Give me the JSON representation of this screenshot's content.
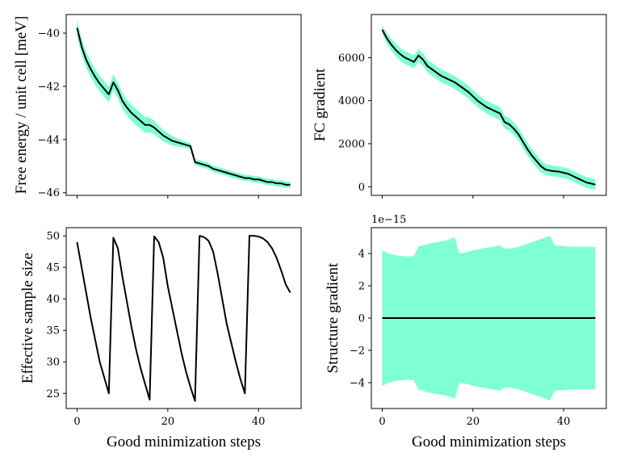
{
  "colors": {
    "line": "#000000",
    "band": "#7fffd4",
    "frame": "#000000"
  },
  "chart_data": [
    {
      "id": "free-energy",
      "type": "line",
      "ylabel": "Free energy / unit cell [meV]",
      "xlabel": "",
      "xlim": [
        -2.4,
        49.4
      ],
      "ylim": [
        -46.1,
        -39.3
      ],
      "xticks": [
        0,
        20,
        40
      ],
      "show_xtick_labels": false,
      "yticks": [
        -40,
        -42,
        -44,
        -46
      ],
      "yticklabels": [
        "−40",
        "−42",
        "−44",
        "−46"
      ],
      "series": [
        {
          "x": [
            0,
            1,
            2,
            3,
            4,
            5,
            6,
            7,
            8,
            9,
            10,
            11,
            12,
            13,
            14,
            15,
            16,
            17,
            18,
            19,
            20,
            21,
            22,
            23,
            24,
            25,
            26,
            27,
            28,
            29,
            30,
            31,
            32,
            33,
            34,
            35,
            36,
            37,
            38,
            39,
            40,
            41,
            42,
            43,
            44,
            45,
            46,
            47
          ],
          "values": [
            -39.8,
            -40.5,
            -41.0,
            -41.35,
            -41.65,
            -41.9,
            -42.1,
            -42.3,
            -41.85,
            -42.15,
            -42.55,
            -42.8,
            -43.0,
            -43.15,
            -43.3,
            -43.45,
            -43.45,
            -43.55,
            -43.7,
            -43.85,
            -43.95,
            -44.05,
            -44.1,
            -44.15,
            -44.2,
            -44.25,
            -44.85,
            -44.9,
            -44.95,
            -45.0,
            -45.1,
            -45.15,
            -45.2,
            -45.25,
            -45.3,
            -45.35,
            -45.4,
            -45.45,
            -45.45,
            -45.5,
            -45.5,
            -45.55,
            -45.6,
            -45.6,
            -45.65,
            -45.65,
            -45.7,
            -45.7
          ],
          "band": [
            0.3,
            0.3,
            0.3,
            0.3,
            0.3,
            0.3,
            0.3,
            0.3,
            0.3,
            0.3,
            0.3,
            0.3,
            0.3,
            0.3,
            0.3,
            0.3,
            0.28,
            0.26,
            0.24,
            0.22,
            0.2,
            0.18,
            0.16,
            0.14,
            0.12,
            0.12,
            0.12,
            0.12,
            0.12,
            0.12,
            0.12,
            0.12,
            0.12,
            0.12,
            0.12,
            0.12,
            0.12,
            0.12,
            0.12,
            0.12,
            0.12,
            0.12,
            0.12,
            0.12,
            0.12,
            0.12,
            0.12,
            0.12
          ]
        }
      ]
    },
    {
      "id": "fc-gradient",
      "type": "line",
      "ylabel": "FC gradient",
      "xlabel": "",
      "xlim": [
        -2.4,
        49.4
      ],
      "ylim": [
        -400,
        8000
      ],
      "xticks": [
        0,
        20,
        40
      ],
      "show_xtick_labels": false,
      "yticks": [
        0,
        2000,
        4000,
        6000
      ],
      "yticklabels": [
        "0",
        "2000",
        "4000",
        "6000"
      ],
      "series": [
        {
          "x": [
            0,
            1,
            2,
            3,
            4,
            5,
            6,
            7,
            8,
            9,
            10,
            11,
            12,
            13,
            14,
            15,
            16,
            17,
            18,
            19,
            20,
            21,
            22,
            23,
            24,
            25,
            26,
            27,
            28,
            29,
            30,
            31,
            32,
            33,
            34,
            35,
            36,
            37,
            38,
            39,
            40,
            41,
            42,
            43,
            44,
            45,
            46,
            47
          ],
          "values": [
            7300,
            6900,
            6600,
            6350,
            6150,
            6000,
            5900,
            5800,
            6100,
            5900,
            5600,
            5450,
            5300,
            5150,
            5050,
            4950,
            4850,
            4700,
            4550,
            4400,
            4200,
            4000,
            3850,
            3700,
            3600,
            3500,
            3400,
            3000,
            2900,
            2700,
            2450,
            2100,
            1750,
            1450,
            1200,
            950,
            800,
            750,
            720,
            700,
            650,
            600,
            500,
            400,
            300,
            200,
            150,
            100
          ],
          "band": [
            200,
            250,
            280,
            300,
            300,
            300,
            300,
            300,
            300,
            300,
            300,
            300,
            300,
            300,
            300,
            300,
            300,
            300,
            300,
            300,
            300,
            300,
            300,
            300,
            300,
            300,
            300,
            300,
            300,
            300,
            300,
            300,
            300,
            300,
            300,
            300,
            250,
            250,
            250,
            250,
            250,
            250,
            250,
            250,
            250,
            250,
            250,
            250
          ]
        }
      ]
    },
    {
      "id": "effective-sample-size",
      "type": "line",
      "ylabel": "Effective sample size",
      "xlabel": "Good minimization steps",
      "xlim": [
        -2.4,
        49.4
      ],
      "ylim": [
        22.6,
        51.3
      ],
      "xticks": [
        0,
        20,
        40
      ],
      "xticklabels": [
        "0",
        "20",
        "40"
      ],
      "show_xtick_labels": true,
      "yticks": [
        25,
        30,
        35,
        40,
        45,
        50
      ],
      "yticklabels": [
        "25",
        "30",
        "35",
        "40",
        "45",
        "50"
      ],
      "series": [
        {
          "x": [
            0,
            1,
            2,
            3,
            4,
            5,
            6,
            7,
            8,
            9,
            10,
            11,
            12,
            13,
            14,
            15,
            16,
            17,
            18,
            19,
            20,
            21,
            22,
            23,
            24,
            25,
            26,
            27,
            28,
            29,
            30,
            31,
            32,
            33,
            34,
            35,
            36,
            37,
            38,
            39,
            40,
            41,
            42,
            43,
            44,
            45,
            46,
            47
          ],
          "values": [
            49.0,
            45.0,
            41.0,
            37.0,
            33.5,
            30.0,
            27.5,
            25.0,
            49.7,
            48.0,
            43.5,
            39.5,
            35.5,
            32.0,
            29.0,
            26.5,
            24.0,
            49.9,
            49.0,
            46.5,
            42.0,
            38.5,
            35.0,
            31.5,
            28.5,
            26.0,
            23.8,
            50.0,
            49.8,
            49.2,
            47.5,
            44.0,
            40.0,
            36.0,
            33.0,
            30.0,
            27.3,
            25.0,
            50.0,
            50.0,
            49.9,
            49.6,
            49.0,
            48.0,
            46.5,
            44.5,
            42.3,
            41.0
          ]
        }
      ]
    },
    {
      "id": "structure-gradient",
      "type": "line",
      "ylabel": "Structure gradient",
      "xlabel": "Good minimization steps",
      "xlim": [
        -2.4,
        49.4
      ],
      "ylim": [
        -5.6,
        5.6
      ],
      "offset_text": "1e−15",
      "xticks": [
        0,
        20,
        40
      ],
      "xticklabels": [
        "0",
        "20",
        "40"
      ],
      "show_xtick_labels": true,
      "yticks": [
        -4,
        -2,
        0,
        2,
        4
      ],
      "yticklabels": [
        "−4",
        "−2",
        "0",
        "2",
        "4"
      ],
      "series": [
        {
          "x": [
            0,
            1,
            2,
            3,
            4,
            5,
            6,
            7,
            8,
            9,
            10,
            11,
            12,
            13,
            14,
            15,
            16,
            17,
            18,
            19,
            20,
            21,
            22,
            23,
            24,
            25,
            26,
            27,
            28,
            29,
            30,
            31,
            32,
            33,
            34,
            35,
            36,
            37,
            38,
            39,
            40,
            41,
            42,
            43,
            44,
            45,
            46,
            47
          ],
          "values": [
            0,
            0,
            0,
            0,
            0,
            0,
            0,
            0,
            0,
            0,
            0,
            0,
            0,
            0,
            0,
            0,
            0,
            0,
            0,
            0,
            0,
            0,
            0,
            0,
            0,
            0,
            0,
            0,
            0,
            0,
            0,
            0,
            0,
            0,
            0,
            0,
            0,
            0,
            0,
            0,
            0,
            0,
            0,
            0,
            0,
            0,
            0,
            0
          ],
          "band": [
            4.2,
            4.05,
            3.95,
            3.9,
            3.85,
            3.82,
            3.82,
            3.85,
            4.45,
            4.5,
            4.6,
            4.65,
            4.7,
            4.75,
            4.8,
            4.9,
            5.0,
            4.0,
            4.05,
            4.1,
            4.2,
            4.25,
            4.3,
            4.35,
            4.4,
            4.45,
            4.5,
            4.3,
            4.3,
            4.35,
            4.4,
            4.5,
            4.6,
            4.7,
            4.8,
            4.9,
            5.0,
            5.1,
            4.5,
            4.48,
            4.46,
            4.44,
            4.42,
            4.42,
            4.42,
            4.42,
            4.42,
            4.42
          ]
        }
      ]
    }
  ]
}
